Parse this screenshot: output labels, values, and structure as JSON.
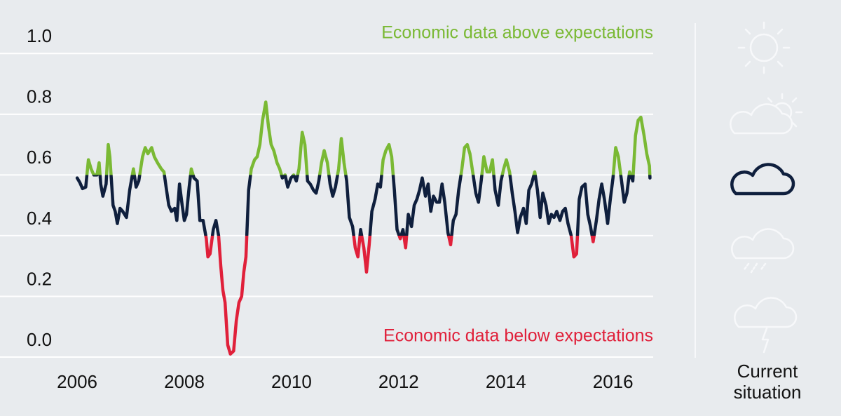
{
  "chart_data": {
    "type": "line",
    "annotations": [
      {
        "text": "Economic data above expectations",
        "band": "above"
      },
      {
        "text": "Economic data below expectations",
        "band": "below"
      }
    ],
    "side_label": "Current situation",
    "x": [
      2006.0,
      2006.05,
      2006.1,
      2006.16,
      2006.21,
      2006.26,
      2006.31,
      2006.37,
      2006.41,
      2006.44,
      2006.48,
      2006.54,
      2006.58,
      2006.61,
      2006.67,
      2006.71,
      2006.75,
      2006.8,
      2006.85,
      2006.92,
      2006.98,
      2007.05,
      2007.1,
      2007.15,
      2007.22,
      2007.27,
      2007.32,
      2007.39,
      2007.44,
      2007.5,
      2007.57,
      2007.62,
      2007.66,
      2007.71,
      2007.76,
      2007.82,
      2007.86,
      2007.91,
      2007.96,
      2008.0,
      2008.04,
      2008.09,
      2008.13,
      2008.18,
      2008.24,
      2008.29,
      2008.35,
      2008.41,
      2008.44,
      2008.48,
      2008.54,
      2008.59,
      2008.64,
      2008.68,
      2008.72,
      2008.76,
      2008.81,
      2008.86,
      2008.92,
      2008.97,
      2009.02,
      2009.07,
      2009.11,
      2009.15,
      2009.2,
      2009.25,
      2009.31,
      2009.36,
      2009.41,
      2009.46,
      2009.52,
      2009.57,
      2009.62,
      2009.67,
      2009.73,
      2009.78,
      2009.83,
      2009.88,
      2009.93,
      2009.99,
      2010.04,
      2010.09,
      2010.14,
      2010.2,
      2010.25,
      2010.3,
      2010.35,
      2010.41,
      2010.46,
      2010.51,
      2010.56,
      2010.61,
      2010.67,
      2010.72,
      2010.77,
      2010.82,
      2010.88,
      2010.93,
      2010.98,
      2011.03,
      2011.08,
      2011.14,
      2011.19,
      2011.24,
      2011.29,
      2011.35,
      2011.4,
      2011.45,
      2011.5,
      2011.56,
      2011.61,
      2011.66,
      2011.71,
      2011.76,
      2011.82,
      2011.87,
      2011.92,
      2011.97,
      2012.03,
      2012.08,
      2012.13,
      2012.18,
      2012.24,
      2012.29,
      2012.34,
      2012.39,
      2012.44,
      2012.5,
      2012.55,
      2012.6,
      2012.65,
      2012.71,
      2012.76,
      2012.81,
      2012.86,
      2012.92,
      2012.97,
      2013.02,
      2013.07,
      2013.12,
      2013.18,
      2013.23,
      2013.28,
      2013.33,
      2013.39,
      2013.44,
      2013.49,
      2013.54,
      2013.59,
      2013.65,
      2013.7,
      2013.75,
      2013.8,
      2013.86,
      2013.91,
      2013.96,
      2014.01,
      2014.07,
      2014.12,
      2014.17,
      2014.22,
      2014.27,
      2014.33,
      2014.38,
      2014.43,
      2014.48,
      2014.54,
      2014.59,
      2014.64,
      2014.69,
      2014.75,
      2014.8,
      2014.85,
      2014.9,
      2014.95,
      2015.01,
      2015.06,
      2015.11,
      2015.16,
      2015.22,
      2015.27,
      2015.32,
      2015.37,
      2015.42,
      2015.48,
      2015.53,
      2015.58,
      2015.63,
      2015.69,
      2015.74,
      2015.79,
      2015.84,
      2015.9,
      2015.95,
      2016.0,
      2016.05,
      2016.1,
      2016.16,
      2016.21,
      2016.26,
      2016.31,
      2016.37,
      2016.42,
      2016.47,
      2016.52,
      2016.58,
      2016.63,
      2016.68,
      2016.69
    ],
    "values": [
      0.59,
      0.575,
      0.555,
      0.56,
      0.65,
      0.62,
      0.6,
      0.6,
      0.64,
      0.57,
      0.53,
      0.57,
      0.7,
      0.66,
      0.5,
      0.48,
      0.44,
      0.49,
      0.48,
      0.46,
      0.55,
      0.62,
      0.56,
      0.58,
      0.66,
      0.69,
      0.67,
      0.69,
      0.66,
      0.64,
      0.62,
      0.61,
      0.56,
      0.5,
      0.48,
      0.49,
      0.45,
      0.57,
      0.5,
      0.45,
      0.47,
      0.56,
      0.62,
      0.59,
      0.58,
      0.45,
      0.45,
      0.39,
      0.33,
      0.34,
      0.42,
      0.45,
      0.4,
      0.3,
      0.22,
      0.18,
      0.04,
      0.01,
      0.02,
      0.12,
      0.18,
      0.2,
      0.28,
      0.33,
      0.55,
      0.62,
      0.65,
      0.66,
      0.7,
      0.78,
      0.84,
      0.76,
      0.7,
      0.68,
      0.64,
      0.62,
      0.59,
      0.6,
      0.56,
      0.59,
      0.6,
      0.58,
      0.62,
      0.74,
      0.7,
      0.58,
      0.57,
      0.55,
      0.54,
      0.58,
      0.64,
      0.68,
      0.64,
      0.57,
      0.53,
      0.56,
      0.62,
      0.72,
      0.64,
      0.58,
      0.46,
      0.43,
      0.36,
      0.33,
      0.42,
      0.36,
      0.28,
      0.37,
      0.48,
      0.52,
      0.57,
      0.56,
      0.65,
      0.68,
      0.7,
      0.66,
      0.55,
      0.42,
      0.39,
      0.42,
      0.36,
      0.47,
      0.43,
      0.5,
      0.52,
      0.55,
      0.59,
      0.53,
      0.57,
      0.48,
      0.53,
      0.51,
      0.51,
      0.57,
      0.51,
      0.41,
      0.37,
      0.45,
      0.47,
      0.55,
      0.62,
      0.69,
      0.7,
      0.67,
      0.6,
      0.54,
      0.51,
      0.58,
      0.66,
      0.61,
      0.61,
      0.65,
      0.55,
      0.5,
      0.58,
      0.62,
      0.65,
      0.61,
      0.54,
      0.48,
      0.41,
      0.46,
      0.49,
      0.44,
      0.55,
      0.57,
      0.61,
      0.55,
      0.46,
      0.54,
      0.5,
      0.44,
      0.47,
      0.46,
      0.48,
      0.45,
      0.48,
      0.49,
      0.44,
      0.4,
      0.33,
      0.34,
      0.52,
      0.56,
      0.57,
      0.47,
      0.43,
      0.38,
      0.45,
      0.52,
      0.57,
      0.52,
      0.44,
      0.52,
      0.59,
      0.69,
      0.66,
      0.58,
      0.51,
      0.54,
      0.61,
      0.58,
      0.73,
      0.78,
      0.79,
      0.73,
      0.67,
      0.63,
      0.59
    ],
    "bands": {
      "below": 0.4,
      "above": 0.6
    },
    "band_colors": {
      "above": "#7ab934",
      "between": "#0f1f3d",
      "below": "#e0203a"
    },
    "xlim": [
      2004.56,
      2016.75
    ],
    "ylim": [
      0,
      1.1
    ],
    "xticks": [
      2006,
      2008,
      2010,
      2012,
      2014,
      2016
    ],
    "yticks": [
      {
        "value": 0,
        "label": "0.0"
      },
      0.2,
      0.4,
      0.6,
      0.8,
      {
        "value": 1,
        "label": "1.0"
      }
    ],
    "grid": true
  }
}
